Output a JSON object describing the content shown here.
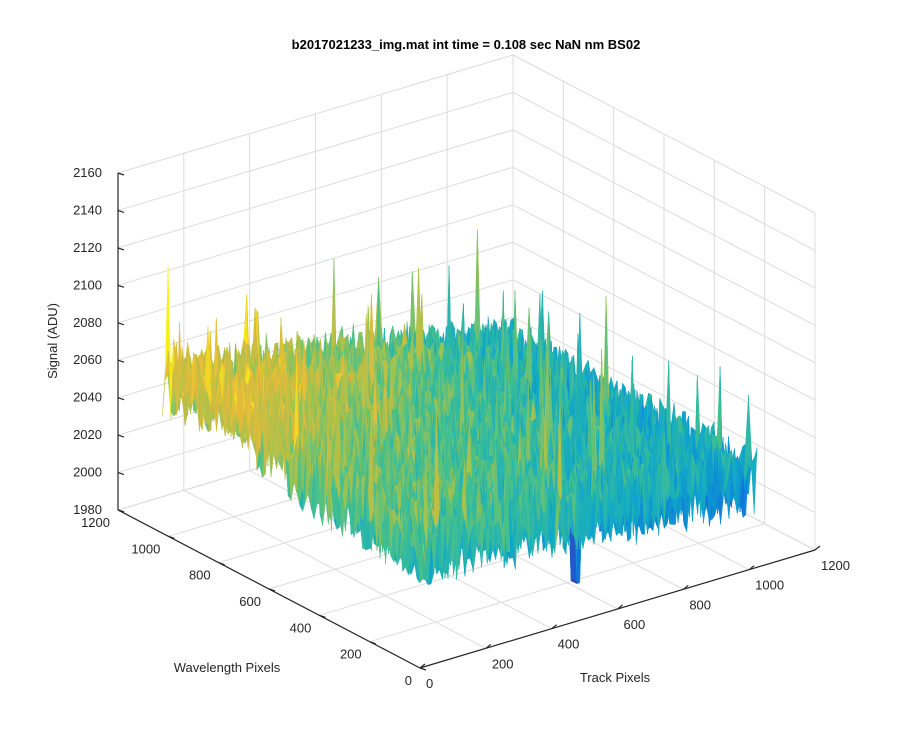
{
  "chart_data": {
    "type": "surface",
    "title": "b2017021233_img.mat int time = 0.108 sec  NaN nm BS02",
    "xlabel": "Track Pixels",
    "ylabel": "Wavelength Pixels",
    "zlabel": "Signal (ADU)",
    "xlim": [
      0,
      1200
    ],
    "ylim": [
      0,
      1200
    ],
    "zlim": [
      1980,
      2160
    ],
    "x_ticks": [
      0,
      200,
      400,
      600,
      800,
      1000,
      1200
    ],
    "y_ticks": [
      0,
      200,
      400,
      600,
      800,
      1000,
      1200
    ],
    "z_ticks": [
      1980,
      2000,
      2020,
      2040,
      2060,
      2080,
      2100,
      2120,
      2140,
      2160
    ],
    "surface_summary": {
      "baseline_signal": 2040,
      "high_region_signal": 2065,
      "high_region": "low track pixels, high wavelength pixels",
      "low_region_signal": 2025,
      "low_region": "high track pixels",
      "noise_amplitude": 20,
      "max_spike": 2125,
      "min_dip": 1990,
      "min_dip_location": {
        "track": 550,
        "wavelength": 100
      }
    },
    "colormap": [
      "#3e26a8",
      "#0d7bdd",
      "#10a9c8",
      "#3fbf92",
      "#a6c24c",
      "#e8ba3a",
      "#f9fb0e"
    ],
    "grid": true
  }
}
